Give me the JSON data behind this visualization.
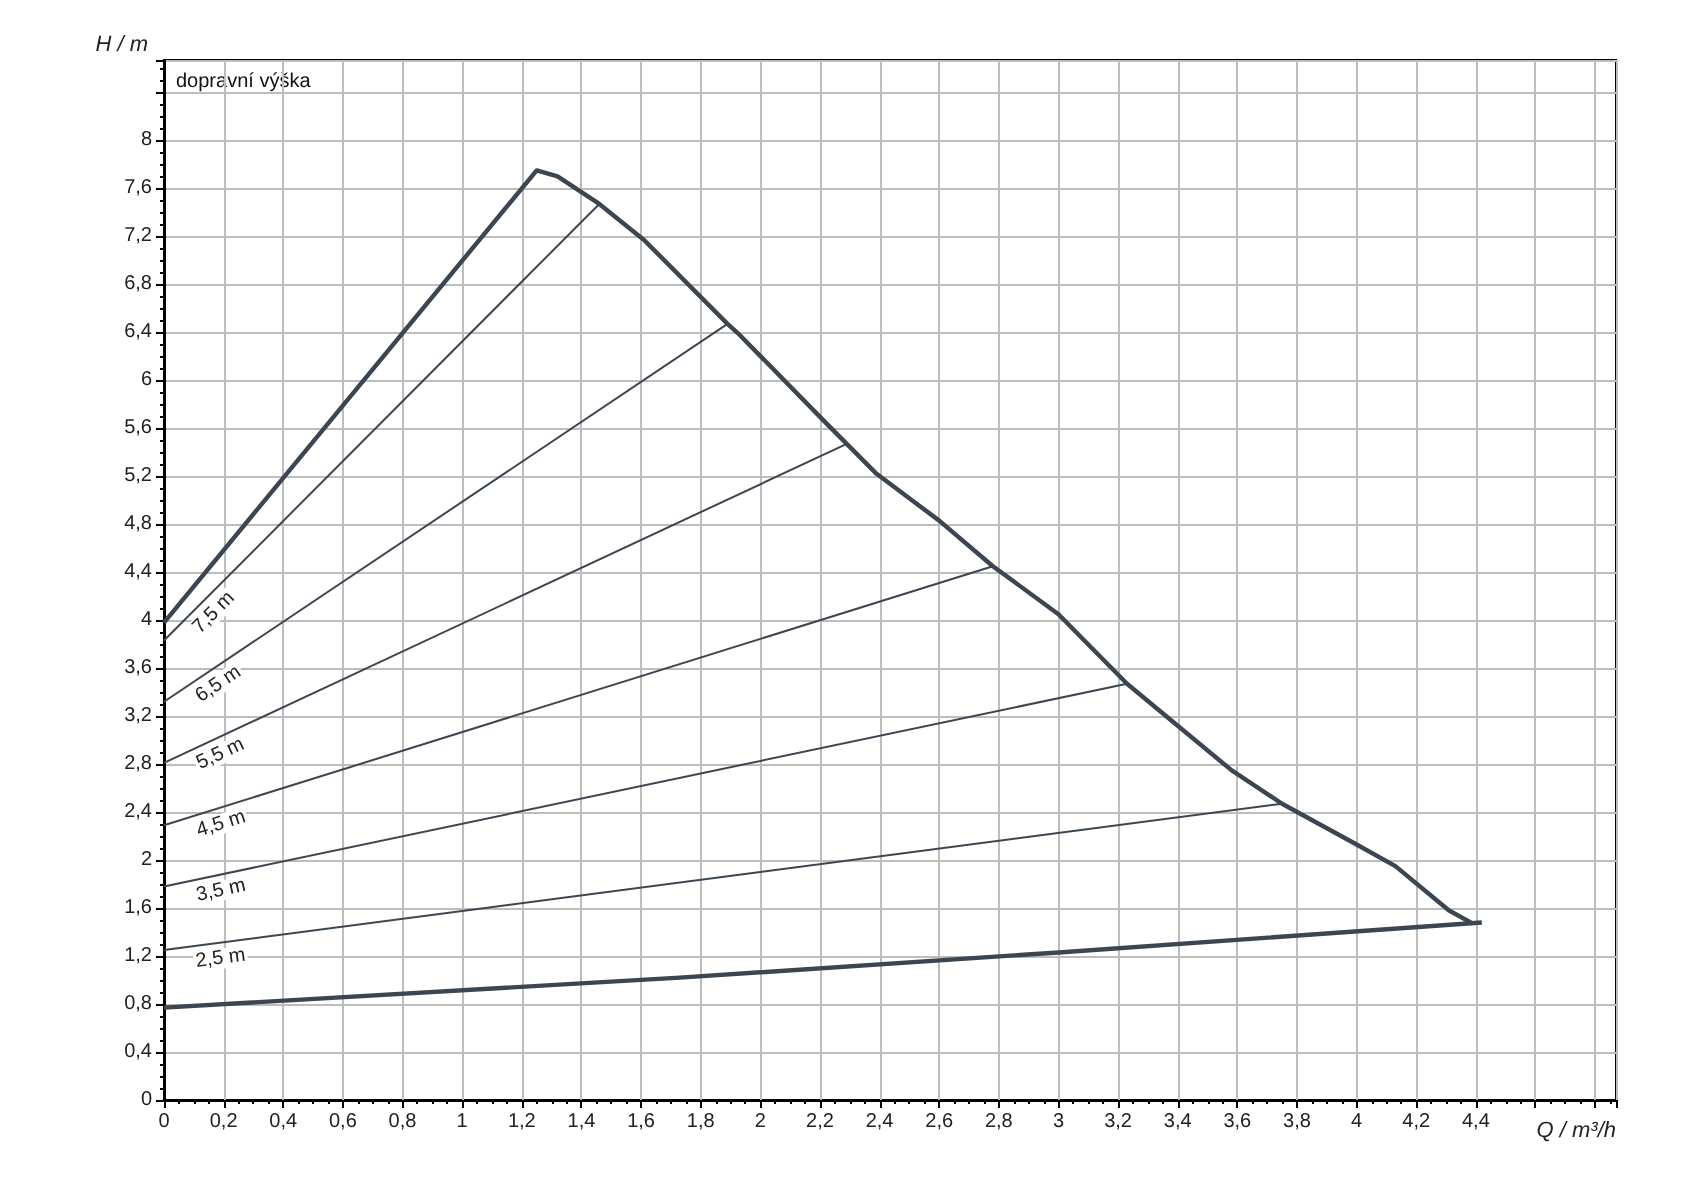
{
  "chart_data": {
    "type": "line",
    "xlabel": "Q / m³/h",
    "ylabel": "H / m",
    "annotations": [
      "dopravní výška"
    ],
    "xlim": [
      0,
      4.87
    ],
    "ylim": [
      0,
      8.67
    ],
    "xticks": [
      {
        "value": 0,
        "label": "0"
      },
      {
        "value": 0.2,
        "label": "0,2"
      },
      {
        "value": 0.4,
        "label": "0,4"
      },
      {
        "value": 0.6,
        "label": "0,6"
      },
      {
        "value": 0.8,
        "label": "0,8"
      },
      {
        "value": 1,
        "label": "1"
      },
      {
        "value": 1.2,
        "label": "1,2"
      },
      {
        "value": 1.4,
        "label": "1,4"
      },
      {
        "value": 1.6,
        "label": "1,6"
      },
      {
        "value": 1.8,
        "label": "1,8"
      },
      {
        "value": 2,
        "label": "2"
      },
      {
        "value": 2.2,
        "label": "2,2"
      },
      {
        "value": 2.4,
        "label": "2,4"
      },
      {
        "value": 2.6,
        "label": "2,6"
      },
      {
        "value": 2.8,
        "label": "2,8"
      },
      {
        "value": 3,
        "label": "3"
      },
      {
        "value": 3.2,
        "label": "3,2"
      },
      {
        "value": 3.4,
        "label": "3,4"
      },
      {
        "value": 3.6,
        "label": "3,6"
      },
      {
        "value": 3.8,
        "label": "3,8"
      },
      {
        "value": 4,
        "label": "4"
      },
      {
        "value": 4.2,
        "label": "4,2"
      },
      {
        "value": 4.4,
        "label": "4,4"
      },
      {
        "value": 4.6,
        "label": null
      },
      {
        "value": 4.8,
        "label": null
      }
    ],
    "yticks": [
      {
        "value": 0,
        "label": "0"
      },
      {
        "value": 0.4,
        "label": "0,4"
      },
      {
        "value": 0.8,
        "label": "0,8"
      },
      {
        "value": 1.2,
        "label": "1,2"
      },
      {
        "value": 1.6,
        "label": "1,6"
      },
      {
        "value": 2,
        "label": "2"
      },
      {
        "value": 2.4,
        "label": "2,4"
      },
      {
        "value": 2.8,
        "label": "2,8"
      },
      {
        "value": 3.2,
        "label": "3,2"
      },
      {
        "value": 3.6,
        "label": "3,6"
      },
      {
        "value": 4,
        "label": "4"
      },
      {
        "value": 4.4,
        "label": "4,4"
      },
      {
        "value": 4.8,
        "label": "4,8"
      },
      {
        "value": 5.2,
        "label": "5,2"
      },
      {
        "value": 5.6,
        "label": "5,6"
      },
      {
        "value": 6,
        "label": "6"
      },
      {
        "value": 6.4,
        "label": "6,4"
      },
      {
        "value": 6.8,
        "label": "6,8"
      },
      {
        "value": 7.2,
        "label": "7,2"
      },
      {
        "value": 7.6,
        "label": "7,6"
      },
      {
        "value": 8,
        "label": "8"
      },
      {
        "value": 8.4,
        "label": null
      }
    ],
    "grid": true,
    "legend": false,
    "marker": "none",
    "line_style": "solid",
    "series": [
      {
        "color": "#3c4650",
        "x": [
          0,
          1.25,
          1.32,
          1.46,
          1.61,
          1.89,
          1.93,
          2.21,
          2.29,
          2.39,
          2.6,
          2.78,
          3.0,
          3.23,
          3.4,
          3.58,
          3.75,
          4.0,
          4.13,
          4.31,
          4.39
        ],
        "values": [
          3.98,
          7.75,
          7.7,
          7.47,
          7.17,
          6.47,
          6.38,
          5.67,
          5.47,
          5.22,
          4.83,
          4.45,
          4.05,
          3.47,
          3.12,
          2.75,
          2.47,
          2.13,
          1.95,
          1.58,
          1.47
        ]
      },
      {
        "color": "#3c4650",
        "x": [
          0,
          1.73,
          3.0,
          4.42
        ],
        "values": [
          0.77,
          1.02,
          1.23,
          1.48
        ]
      },
      {
        "name": "7,5 m",
        "color": "#3c4650",
        "x": [
          0,
          1.46
        ],
        "values": [
          3.83,
          7.47
        ]
      },
      {
        "name": "6,5 m",
        "color": "#3c4650",
        "x": [
          0,
          1.89
        ],
        "values": [
          3.32,
          6.47
        ]
      },
      {
        "name": "5,5 m",
        "color": "#3c4650",
        "x": [
          0,
          2.29
        ],
        "values": [
          2.81,
          5.47
        ]
      },
      {
        "name": "4,5 m",
        "color": "#3c4650",
        "x": [
          0,
          2.78
        ],
        "values": [
          2.29,
          4.45
        ]
      },
      {
        "name": "3,5 m",
        "color": "#3c4650",
        "x": [
          0,
          3.23
        ],
        "values": [
          1.78,
          3.47
        ]
      },
      {
        "name": "2,5 m",
        "color": "#3c4650",
        "x": [
          0,
          3.75
        ],
        "values": [
          1.25,
          2.47
        ]
      }
    ]
  }
}
